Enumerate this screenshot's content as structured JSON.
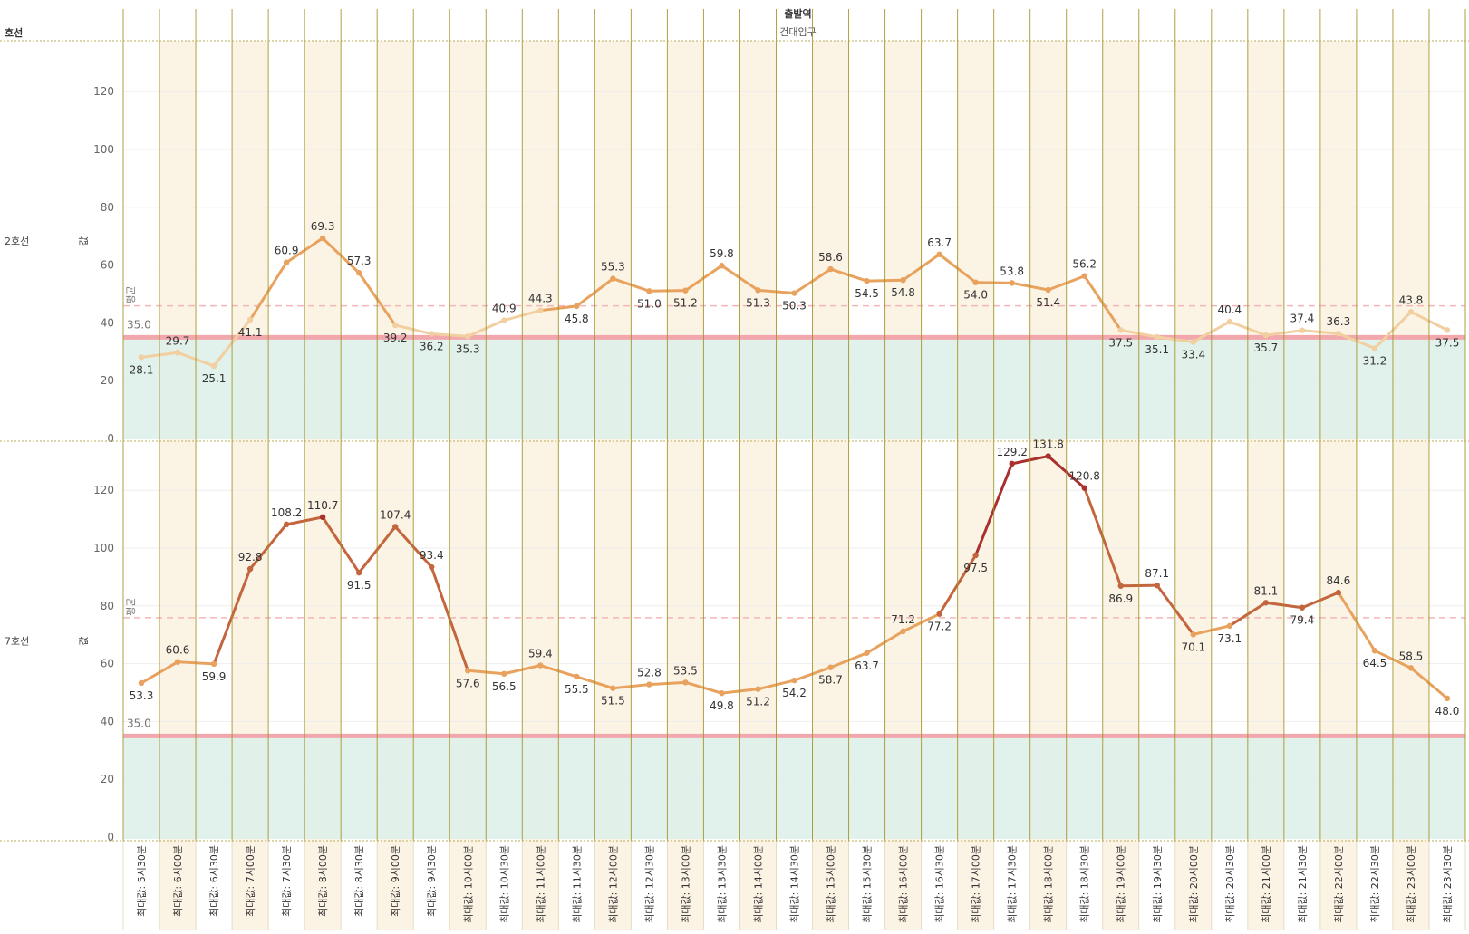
{
  "header": {
    "column_field": "출발역",
    "column_value": "건대입구",
    "row_field": "호선"
  },
  "colors": {
    "grid_band": "#fbf3e4",
    "vline": "#a09222",
    "band_fill": "#dcefe9",
    "ref_line": "#f2a7ad",
    "avg_line": "#f4b6b6",
    "low": "#f2cfa0",
    "mid": "#e8a25e",
    "high": "#c3653d",
    "peak": "#a9302c"
  },
  "chart_data": {
    "type": "line",
    "categories": [
      "최대값: 5시30분",
      "최대값: 6시00분",
      "최대값: 6시30분",
      "최대값: 7시00분",
      "최대값: 7시30분",
      "최대값: 8시00분",
      "최대값: 8시30분",
      "최대값: 9시00분",
      "최대값: 9시30분",
      "최대값: 10시00분",
      "최대값: 10시30분",
      "최대값: 11시00분",
      "최대값: 11시30분",
      "최대값: 12시00분",
      "최대값: 12시30분",
      "최대값: 13시00분",
      "최대값: 13시30분",
      "최대값: 14시00분",
      "최대값: 14시30분",
      "최대값: 15시00분",
      "최대값: 15시30분",
      "최대값: 16시00분",
      "최대값: 16시30분",
      "최대값: 17시00분",
      "최대값: 17시30분",
      "최대값: 18시00분",
      "최대값: 18시30분",
      "최대값: 19시00분",
      "최대값: 19시30분",
      "최대값: 20시00분",
      "최대값: 20시30분",
      "최대값: 21시00분",
      "최대값: 21시30분",
      "최대값: 22시00분",
      "최대값: 22시30분",
      "최대값: 23시00분",
      "최대값: 23시30분"
    ],
    "ylabel": "값",
    "ylim": [
      0,
      140
    ],
    "yticks": [
      0,
      20,
      40,
      60,
      80,
      100,
      120
    ],
    "reference_line": {
      "value": 35.0,
      "label": "35.0"
    },
    "average_label": "평균",
    "panels": [
      {
        "name": "2호선",
        "values": [
          28.1,
          29.7,
          25.1,
          41.1,
          60.9,
          69.3,
          57.3,
          39.2,
          36.2,
          35.3,
          40.9,
          44.3,
          45.8,
          55.3,
          51.0,
          51.2,
          59.8,
          51.3,
          50.3,
          58.6,
          54.5,
          54.8,
          63.7,
          54.0,
          53.8,
          51.4,
          56.2,
          37.5,
          35.1,
          33.4,
          40.4,
          35.7,
          37.4,
          36.3,
          31.2,
          43.8,
          37.5
        ],
        "label_pos": [
          "b",
          "a",
          "b",
          "b",
          "a",
          "a",
          "a",
          "b",
          "b",
          "b",
          "a",
          "a",
          "b",
          "a",
          "b",
          "b",
          "a",
          "b",
          "b",
          "a",
          "b",
          "b",
          "a",
          "b",
          "a",
          "b",
          "a",
          "b",
          "b",
          "b",
          "a",
          "b",
          "a",
          "a",
          "b",
          "a",
          "b"
        ],
        "average": 45.9
      },
      {
        "name": "7호선",
        "values": [
          53.3,
          60.6,
          59.9,
          92.8,
          108.2,
          110.7,
          91.5,
          107.4,
          93.4,
          57.6,
          56.5,
          59.4,
          55.5,
          51.5,
          52.8,
          53.5,
          49.8,
          51.2,
          54.2,
          58.7,
          63.7,
          71.2,
          77.2,
          97.5,
          129.2,
          131.8,
          120.8,
          86.9,
          87.1,
          70.1,
          73.1,
          81.1,
          79.4,
          84.6,
          64.5,
          58.5,
          48.0
        ],
        "label_pos": [
          "b",
          "a",
          "b",
          "a",
          "a",
          "a",
          "b",
          "a",
          "a",
          "b",
          "b",
          "a",
          "b",
          "b",
          "a",
          "a",
          "b",
          "b",
          "b",
          "b",
          "b",
          "a",
          "b",
          "b",
          "a",
          "a",
          "a",
          "b",
          "a",
          "b",
          "b",
          "a",
          "b",
          "a",
          "b",
          "a",
          "b"
        ],
        "average": 75.9
      }
    ]
  }
}
